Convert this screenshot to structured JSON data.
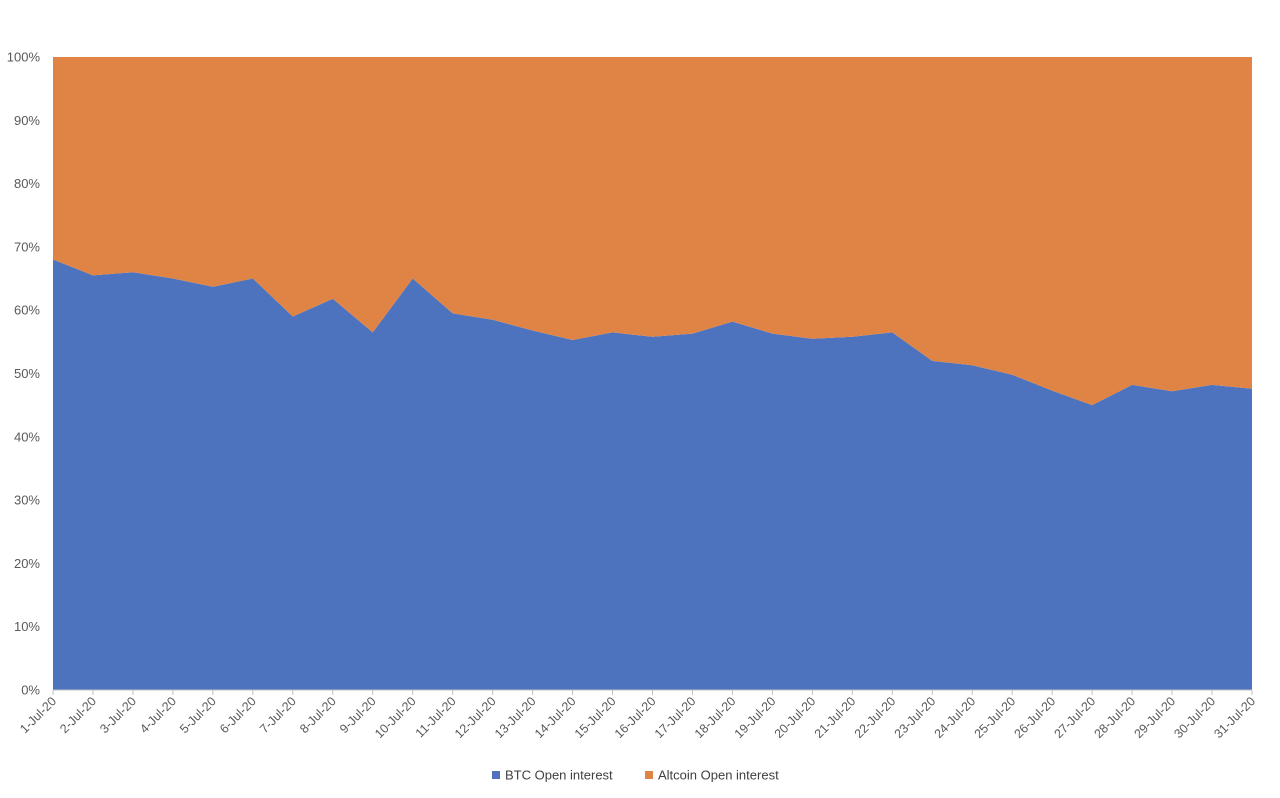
{
  "chart_data": {
    "type": "area",
    "stacking": "percent",
    "categories": [
      "1-Jul-20",
      "2-Jul-20",
      "3-Jul-20",
      "4-Jul-20",
      "5-Jul-20",
      "6-Jul-20",
      "7-Jul-20",
      "8-Jul-20",
      "9-Jul-20",
      "10-Jul-20",
      "11-Jul-20",
      "12-Jul-20",
      "13-Jul-20",
      "14-Jul-20",
      "15-Jul-20",
      "16-Jul-20",
      "17-Jul-20",
      "18-Jul-20",
      "19-Jul-20",
      "20-Jul-20",
      "21-Jul-20",
      "22-Jul-20",
      "23-Jul-20",
      "24-Jul-20",
      "25-Jul-20",
      "26-Jul-20",
      "27-Jul-20",
      "28-Jul-20",
      "29-Jul-20",
      "30-Jul-20",
      "31-Jul-20"
    ],
    "series": [
      {
        "name": "BTC Open interest",
        "color": "#4e73be",
        "values": [
          68,
          65.5,
          66,
          65,
          63.7,
          65,
          59,
          61.8,
          56.5,
          65,
          59.5,
          58.5,
          56.8,
          55.3,
          56.5,
          55.8,
          56.3,
          58.2,
          56.3,
          55.5,
          55.8,
          56.5,
          52,
          51.3,
          49.8,
          47.3,
          45,
          48.2,
          47.2,
          48.2,
          47.6
        ]
      },
      {
        "name": "Altcoin Open interest",
        "color": "#df8444",
        "values": [
          32,
          34.5,
          34,
          35,
          36.3,
          35,
          41,
          38.2,
          43.5,
          35,
          40.5,
          41.5,
          43.2,
          44.7,
          43.5,
          44.2,
          43.7,
          41.8,
          43.7,
          44.5,
          44.2,
          43.5,
          48,
          48.7,
          50.2,
          52.7,
          55,
          51.8,
          52.8,
          51.8,
          52.4
        ]
      }
    ],
    "yticks": [
      "0%",
      "10%",
      "20%",
      "30%",
      "40%",
      "50%",
      "60%",
      "70%",
      "80%",
      "90%",
      "100%"
    ],
    "ylim": [
      0,
      100
    ],
    "grid": false,
    "legend_position": "bottom"
  }
}
